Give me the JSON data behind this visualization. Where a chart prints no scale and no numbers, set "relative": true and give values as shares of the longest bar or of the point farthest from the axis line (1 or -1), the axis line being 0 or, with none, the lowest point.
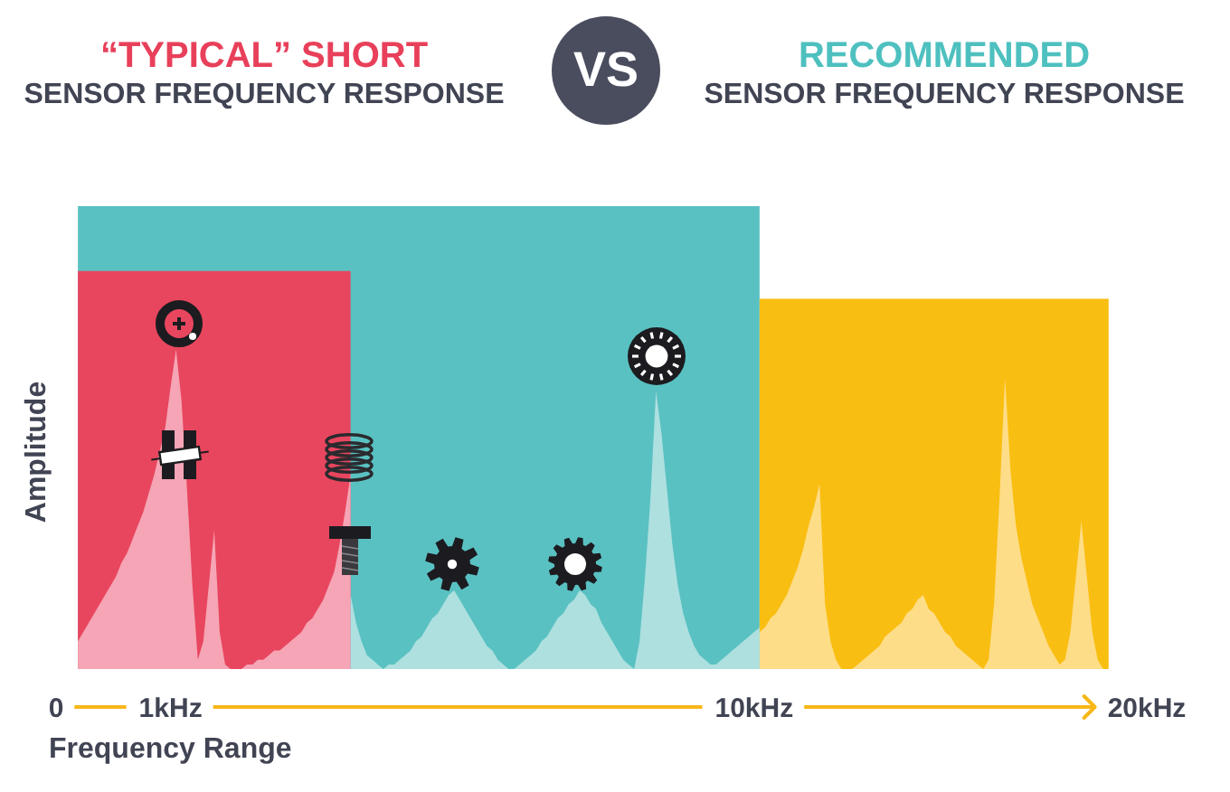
{
  "chart_data": {
    "type": "area",
    "relative": true,
    "annotations": [
      "“TYPICAL” SHORT",
      "SENSOR FREQUENCY RESPONSE",
      "VS",
      "RECOMMENDED",
      "SENSOR FREQUENCY RESPONSE"
    ],
    "xlabel": "Frequency Range",
    "ylabel": "Amplitude",
    "categories": [
      "0",
      null,
      null,
      null,
      null,
      null,
      null,
      null,
      null,
      null,
      null,
      null,
      null,
      null,
      null,
      null,
      null,
      null,
      null,
      null,
      null,
      "1kHz",
      null,
      null,
      null,
      null,
      null,
      null,
      null,
      null,
      null,
      null,
      null,
      null,
      null,
      null,
      null,
      null,
      null,
      null,
      null,
      null,
      null,
      null,
      null,
      null,
      null,
      null,
      null,
      null,
      null,
      null,
      null,
      null,
      null,
      null,
      null,
      null,
      null,
      null,
      null,
      null,
      null,
      null,
      null,
      null,
      null,
      null,
      null,
      null,
      null,
      null,
      null,
      null,
      null,
      null,
      null,
      null,
      null,
      null,
      null,
      null,
      null,
      null,
      null,
      null,
      null,
      null,
      null,
      null,
      null,
      null,
      null,
      null,
      null,
      null,
      null,
      null,
      null,
      null,
      null,
      null,
      null,
      null,
      null,
      null,
      null,
      null,
      null,
      null,
      null,
      null,
      null,
      null,
      null,
      null,
      null,
      null,
      null,
      null,
      null,
      null,
      null,
      null,
      null,
      null,
      null,
      null,
      "10kHz",
      null,
      null,
      null,
      null,
      null,
      null,
      null,
      null,
      null,
      null,
      null,
      null,
      null,
      null,
      null,
      null,
      null,
      null,
      null,
      null,
      null,
      null,
      null,
      null,
      null,
      null,
      null,
      null,
      null,
      null,
      null,
      null,
      null,
      null,
      null,
      null,
      null,
      null,
      null,
      null,
      null,
      null,
      null,
      null,
      null,
      null,
      null,
      null,
      null,
      null,
      null,
      null,
      null,
      null,
      null,
      null,
      null,
      null,
      null,
      null,
      null,
      null,
      null,
      null,
      null,
      null,
      null,
      null,
      null,
      null,
      null,
      "20kHz"
    ],
    "series": [
      {
        "color": "#5ac1c2",
        "values": [
          null,
          null,
          null,
          null,
          1,
          1,
          1,
          1,
          1,
          1,
          1,
          1,
          1,
          1,
          1,
          1,
          1,
          1,
          1,
          1,
          1,
          1,
          1,
          1,
          1,
          1,
          1,
          1,
          1,
          1,
          1,
          1,
          1,
          1,
          1,
          1,
          1,
          1,
          1,
          1,
          1,
          1,
          1,
          1,
          1,
          1,
          1,
          1,
          1,
          1,
          1,
          1,
          1,
          1,
          1,
          1,
          1,
          1,
          1,
          1,
          1,
          1,
          1,
          1,
          1,
          1,
          1,
          1,
          1,
          1,
          1,
          1,
          1,
          1,
          1,
          1,
          1,
          1,
          1,
          1,
          1,
          1,
          1,
          1,
          1,
          1,
          1,
          1,
          1,
          1,
          1,
          1,
          1,
          1,
          1,
          1,
          1,
          1,
          1,
          1,
          1,
          1,
          1,
          1,
          1,
          1,
          1,
          1,
          1,
          1,
          1,
          1,
          1,
          1,
          1,
          1,
          1,
          1,
          1,
          1,
          1,
          1,
          1,
          1,
          1,
          1,
          1,
          1,
          1,
          1,
          null,
          null,
          null,
          null,
          null,
          null,
          null,
          null,
          null,
          null,
          null,
          null,
          null,
          null,
          null,
          null,
          null,
          null,
          null,
          null,
          null,
          null,
          null,
          null,
          null,
          null,
          null,
          null,
          null,
          null,
          null,
          null,
          null,
          null,
          null,
          null,
          null,
          null,
          null,
          null,
          null,
          null,
          null,
          null,
          null,
          null,
          null,
          null,
          null,
          null,
          null,
          null,
          null,
          null,
          null,
          null,
          null,
          null,
          null,
          null,
          null,
          null,
          null,
          null,
          null,
          null,
          null,
          null,
          null,
          null,
          null
        ]
      },
      {
        "color": "#e8465e",
        "values": [
          null,
          null,
          null,
          null,
          0.86,
          0.86,
          0.86,
          0.86,
          0.86,
          0.86,
          0.86,
          0.86,
          0.86,
          0.86,
          0.86,
          0.86,
          0.86,
          0.86,
          0.86,
          0.86,
          0.86,
          0.86,
          0.86,
          0.86,
          0.86,
          0.86,
          0.86,
          0.86,
          0.86,
          0.86,
          0.86,
          0.86,
          0.86,
          0.86,
          0.86,
          0.86,
          0.86,
          0.86,
          0.86,
          0.86,
          0.86,
          0.86,
          0.86,
          0.86,
          0.86,
          0.86,
          0.86,
          0.86,
          0.86,
          0.86,
          0.86,
          0.86,
          0.86,
          0.86,
          0.86,
          null,
          null,
          null,
          null,
          null,
          null,
          null,
          null,
          null,
          null,
          null,
          null,
          null,
          null,
          null,
          null,
          null,
          null,
          null,
          null,
          null,
          null,
          null,
          null,
          null,
          null,
          null,
          null,
          null,
          null,
          null,
          null,
          null,
          null,
          null,
          null,
          null,
          null,
          null,
          null,
          null,
          null,
          null,
          null,
          null,
          null,
          null,
          null,
          null,
          null,
          null,
          null,
          null,
          null,
          null,
          null,
          null,
          null,
          null,
          null,
          null,
          null,
          null,
          null,
          null,
          null,
          null,
          null,
          null,
          null,
          null,
          null,
          null,
          null,
          null,
          null,
          null,
          null,
          null,
          null,
          null,
          null,
          null,
          null,
          null,
          null,
          null,
          null,
          null,
          null,
          null,
          null,
          null,
          null,
          null,
          null,
          null,
          null,
          null,
          null,
          null,
          null,
          null,
          null,
          null,
          null,
          null,
          null,
          null,
          null,
          null,
          null,
          null,
          null,
          null,
          null,
          null,
          null,
          null,
          null,
          null,
          null,
          null,
          null,
          null,
          null,
          null,
          null,
          null,
          null,
          null,
          null,
          null,
          null,
          null,
          null,
          null,
          null,
          null,
          null,
          null,
          null,
          null,
          null,
          null,
          null
        ]
      },
      {
        "color": "#f9be12",
        "values": [
          null,
          null,
          null,
          null,
          null,
          null,
          null,
          null,
          null,
          null,
          null,
          null,
          null,
          null,
          null,
          null,
          null,
          null,
          null,
          null,
          null,
          null,
          null,
          null,
          null,
          null,
          null,
          null,
          null,
          null,
          null,
          null,
          null,
          null,
          null,
          null,
          null,
          null,
          null,
          null,
          null,
          null,
          null,
          null,
          null,
          null,
          null,
          null,
          null,
          null,
          null,
          null,
          null,
          null,
          null,
          null,
          null,
          null,
          null,
          null,
          null,
          null,
          null,
          null,
          null,
          null,
          null,
          null,
          null,
          null,
          null,
          null,
          null,
          null,
          null,
          null,
          null,
          null,
          null,
          null,
          null,
          null,
          null,
          null,
          null,
          null,
          null,
          null,
          null,
          null,
          null,
          null,
          null,
          null,
          null,
          null,
          null,
          null,
          null,
          null,
          null,
          null,
          null,
          null,
          null,
          null,
          null,
          null,
          null,
          null,
          null,
          null,
          null,
          null,
          null,
          null,
          null,
          null,
          null,
          null,
          null,
          null,
          null,
          null,
          null,
          null,
          null,
          null,
          null,
          0.8,
          0.8,
          0.8,
          0.8,
          0.8,
          0.8,
          0.8,
          0.8,
          0.8,
          0.8,
          0.8,
          0.8,
          0.8,
          0.8,
          0.8,
          0.8,
          0.8,
          0.8,
          0.8,
          0.8,
          0.8,
          0.8,
          0.8,
          0.8,
          0.8,
          0.8,
          0.8,
          0.8,
          0.8,
          0.8,
          0.8,
          0.8,
          0.8,
          0.8,
          0.8,
          0.8,
          0.8,
          0.8,
          0.8,
          0.8,
          0.8,
          0.8,
          0.8,
          0.8,
          0.8,
          0.8,
          0.8,
          0.8,
          0.8,
          0.8,
          0.8,
          0.8,
          0.8,
          0.8,
          0.8,
          0.8,
          0.8,
          0.8,
          0.8,
          0.8,
          0.8,
          0.8,
          0.8,
          0.8,
          0.8,
          null,
          null,
          null,
          null,
          null,
          null,
          null
        ]
      },
      {
        "color": "#f5a5b5",
        "values": [
          null,
          null,
          null,
          null,
          0.06,
          0.08,
          0.1,
          0.12,
          0.14,
          0.16,
          0.18,
          0.2,
          0.23,
          0.25,
          0.28,
          0.31,
          0.34,
          0.38,
          0.42,
          0.47,
          0.52,
          0.61,
          0.69,
          0.58,
          0.39,
          0.18,
          0.02,
          0.06,
          0.18,
          0.3,
          0.08,
          0.01,
          0,
          0,
          0,
          0.01,
          0.01,
          0.02,
          0.02,
          0.03,
          0.04,
          0.04,
          0.05,
          0.06,
          0.07,
          0.08,
          0.1,
          0.11,
          0.13,
          0.15,
          0.18,
          0.21,
          0.27,
          0.34,
          0.42,
          null,
          null,
          null,
          null,
          null,
          null,
          null,
          null,
          null,
          null,
          null,
          null,
          null,
          null,
          null,
          null,
          null,
          null,
          null,
          null,
          null,
          null,
          null,
          null,
          null,
          null,
          null,
          null,
          null,
          null,
          null,
          null,
          null,
          null,
          null,
          null,
          null,
          null,
          null,
          null,
          null,
          null,
          null,
          null,
          null,
          null,
          null,
          null,
          null,
          null,
          null,
          null,
          null,
          null,
          null,
          null,
          null,
          null,
          null,
          null,
          null,
          null,
          null,
          null,
          null,
          null,
          null,
          null,
          null,
          null,
          null,
          null,
          null,
          null,
          null,
          null,
          null,
          null,
          null,
          null,
          null,
          null,
          null,
          null,
          null,
          null,
          null,
          null,
          null,
          null,
          null,
          null,
          null,
          null,
          null,
          null,
          null,
          null,
          null,
          null,
          null,
          null,
          null,
          null,
          null,
          null,
          null,
          null,
          null,
          null,
          null,
          null,
          null,
          null,
          null,
          null,
          null,
          null,
          null,
          null,
          null,
          null,
          null,
          null,
          null,
          null,
          null,
          null,
          null,
          null,
          null,
          null,
          null,
          null,
          null,
          null,
          null,
          null,
          null,
          null,
          null,
          null,
          null,
          null,
          null,
          null
        ]
      },
      {
        "color": "#aee0e0",
        "values": [
          null,
          null,
          null,
          null,
          null,
          null,
          null,
          null,
          null,
          null,
          null,
          null,
          null,
          null,
          null,
          null,
          null,
          null,
          null,
          null,
          null,
          null,
          null,
          null,
          null,
          null,
          null,
          null,
          null,
          null,
          null,
          null,
          null,
          null,
          null,
          null,
          null,
          null,
          null,
          null,
          null,
          null,
          null,
          null,
          null,
          null,
          null,
          null,
          null,
          null,
          null,
          null,
          null,
          null,
          0.16,
          0.1,
          0.06,
          0.03,
          0.02,
          0.01,
          0,
          0.01,
          0.01,
          0.02,
          0.03,
          0.04,
          0.06,
          0.07,
          0.09,
          0.11,
          0.12,
          0.14,
          0.16,
          0.17,
          0.15,
          0.13,
          0.11,
          0.09,
          0.07,
          0.05,
          0.04,
          0.02,
          0.01,
          0,
          0,
          0.01,
          0.02,
          0.03,
          0.04,
          0.06,
          0.07,
          0.09,
          0.11,
          0.12,
          0.14,
          0.15,
          0.17,
          0.16,
          0.14,
          0.13,
          0.1,
          0.08,
          0.06,
          0.04,
          0.02,
          0.01,
          0,
          0.06,
          0.2,
          0.37,
          0.6,
          0.51,
          0.39,
          0.27,
          0.18,
          0.12,
          0.08,
          0.05,
          0.03,
          0.02,
          0.01,
          0.01,
          0.02,
          0.03,
          0.04,
          0.05,
          0.06,
          0.07,
          0.08,
          0.09,
          null,
          null,
          null,
          null,
          null,
          null,
          null,
          null,
          null,
          null,
          null,
          null,
          null,
          null,
          null,
          null,
          null,
          null,
          null,
          null,
          null,
          null,
          null,
          null,
          null,
          null,
          null,
          null,
          null,
          null,
          null,
          null,
          null,
          null,
          null,
          null,
          null,
          null,
          null,
          null,
          null,
          null,
          null,
          null,
          null,
          null,
          null,
          null,
          null,
          null,
          null,
          null,
          null,
          null,
          null,
          null,
          null,
          null,
          null,
          null,
          null,
          null,
          null,
          null,
          null,
          null,
          null,
          null,
          null,
          null,
          null
        ]
      },
      {
        "color": "#fedd88",
        "values": [
          null,
          null,
          null,
          null,
          null,
          null,
          null,
          null,
          null,
          null,
          null,
          null,
          null,
          null,
          null,
          null,
          null,
          null,
          null,
          null,
          null,
          null,
          null,
          null,
          null,
          null,
          null,
          null,
          null,
          null,
          null,
          null,
          null,
          null,
          null,
          null,
          null,
          null,
          null,
          null,
          null,
          null,
          null,
          null,
          null,
          null,
          null,
          null,
          null,
          null,
          null,
          null,
          null,
          null,
          null,
          null,
          null,
          null,
          null,
          null,
          null,
          null,
          null,
          null,
          null,
          null,
          null,
          null,
          null,
          null,
          null,
          null,
          null,
          null,
          null,
          null,
          null,
          null,
          null,
          null,
          null,
          null,
          null,
          null,
          null,
          null,
          null,
          null,
          null,
          null,
          null,
          null,
          null,
          null,
          null,
          null,
          null,
          null,
          null,
          null,
          null,
          null,
          null,
          null,
          null,
          null,
          null,
          null,
          null,
          null,
          null,
          null,
          null,
          null,
          null,
          null,
          null,
          null,
          null,
          null,
          null,
          null,
          null,
          null,
          null,
          null,
          null,
          null,
          null,
          0.08,
          0.09,
          0.11,
          0.12,
          0.14,
          0.16,
          0.19,
          0.22,
          0.26,
          0.31,
          0.35,
          0.4,
          0.14,
          0.06,
          0.02,
          0,
          0,
          0,
          0.01,
          0.02,
          0.03,
          0.04,
          0.05,
          0.07,
          0.08,
          0.09,
          0.1,
          0.12,
          0.13,
          0.15,
          0.16,
          0.13,
          0.12,
          0.1,
          0.08,
          0.07,
          0.05,
          0.04,
          0.03,
          0.02,
          0.01,
          0,
          0.02,
          0.14,
          0.37,
          0.63,
          0.43,
          0.31,
          0.24,
          0.19,
          0.14,
          0.11,
          0.08,
          0.05,
          0.03,
          0.01,
          0.02,
          0.08,
          0.2,
          0.32,
          0.2,
          0.08,
          0.02,
          0,
          0,
          null,
          null,
          null,
          null,
          null,
          null,
          null
        ]
      }
    ]
  }
}
